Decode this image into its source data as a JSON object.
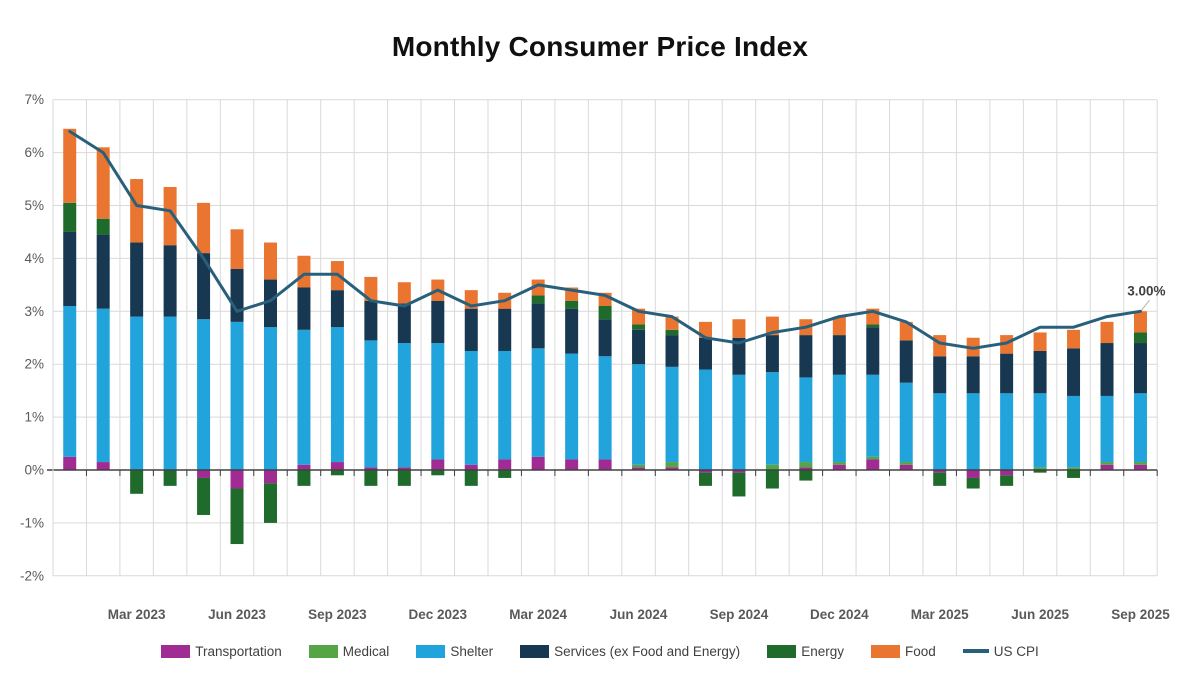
{
  "chart_data": {
    "type": "bar",
    "subtype": "stacked-bar-with-line",
    "title": "Monthly Consumer Price Index",
    "categories": [
      "Jan 2023",
      "Feb 2023",
      "Mar 2023",
      "Apr 2023",
      "May 2023",
      "Jun 2023",
      "Jul 2023",
      "Aug 2023",
      "Sep 2023",
      "Oct 2023",
      "Nov 2023",
      "Dec 2023",
      "Jan 2024",
      "Feb 2024",
      "Mar 2024",
      "Apr 2024",
      "May 2024",
      "Jun 2024",
      "Jul 2024",
      "Aug 2024",
      "Sep 2024",
      "Oct 2024",
      "Nov 2024",
      "Dec 2024",
      "Jan 2025",
      "Feb 2025",
      "Mar 2025",
      "Apr 2025",
      "May 2025",
      "Jun 2025",
      "Jul 2025",
      "Aug 2025",
      "Sep 2025"
    ],
    "x_tick_labels": [
      "Mar 2023",
      "Jun 2023",
      "Sep 2023",
      "Dec 2023",
      "Mar 2024",
      "Jun 2024",
      "Sep 2024",
      "Dec 2024",
      "Mar 2025",
      "Jun 2025",
      "Sep 2025"
    ],
    "x_tick_indices": [
      2,
      5,
      8,
      11,
      14,
      17,
      20,
      23,
      26,
      29,
      32
    ],
    "y_axis": {
      "min": -2,
      "max": 7,
      "step": 1,
      "suffix": "%"
    },
    "grid": true,
    "legend_position": "bottom",
    "series": [
      {
        "name": "Transportation",
        "type": "bar",
        "color": "#A02B93",
        "values": [
          0.25,
          0.15,
          0,
          0,
          -0.15,
          -0.35,
          -0.25,
          0.1,
          0.15,
          0.05,
          0.05,
          0.2,
          0.1,
          0.2,
          0.25,
          0.2,
          0.2,
          0.05,
          0.05,
          -0.05,
          -0.05,
          0,
          0.05,
          0.1,
          0.2,
          0.1,
          -0.05,
          -0.15,
          -0.1,
          0,
          0,
          0.1,
          0.1
        ]
      },
      {
        "name": "Medical",
        "type": "bar",
        "color": "#55A546",
        "values": [
          0,
          0,
          0,
          0,
          0,
          0,
          0,
          0,
          0,
          0,
          0,
          0,
          0,
          0,
          0,
          0,
          0,
          0.05,
          0.1,
          0,
          0,
          0.1,
          0.1,
          0.05,
          0.05,
          0.05,
          0,
          0,
          0,
          0.05,
          0.05,
          0.05,
          0.05
        ]
      },
      {
        "name": "Shelter",
        "type": "bar",
        "color": "#21A3DC",
        "values": [
          2.85,
          2.9,
          2.9,
          2.9,
          2.85,
          2.8,
          2.7,
          2.55,
          2.55,
          2.4,
          2.35,
          2.2,
          2.15,
          2.05,
          2.05,
          2.0,
          1.95,
          1.9,
          1.8,
          1.9,
          1.8,
          1.75,
          1.6,
          1.65,
          1.55,
          1.5,
          1.45,
          1.45,
          1.45,
          1.4,
          1.35,
          1.25,
          1.3
        ]
      },
      {
        "name": "Services (ex Food and Energy)",
        "type": "bar",
        "color": "#173850",
        "values": [
          1.4,
          1.4,
          1.4,
          1.35,
          1.25,
          1.0,
          0.9,
          0.8,
          0.7,
          0.75,
          0.75,
          0.8,
          0.8,
          0.8,
          0.85,
          0.85,
          0.7,
          0.65,
          0.6,
          0.6,
          0.7,
          0.7,
          0.8,
          0.75,
          0.9,
          0.8,
          0.7,
          0.7,
          0.75,
          0.8,
          0.9,
          1.0,
          0.95
        ]
      },
      {
        "name": "Energy",
        "type": "bar",
        "color": "#1F6B2C",
        "values": [
          0.55,
          0.3,
          -0.45,
          -0.3,
          -0.7,
          -1.05,
          -0.75,
          -0.3,
          -0.1,
          -0.3,
          -0.3,
          -0.1,
          -0.3,
          -0.15,
          0.15,
          0.15,
          0.25,
          0.1,
          0.1,
          -0.25,
          -0.45,
          -0.35,
          -0.2,
          0,
          0.05,
          0,
          -0.25,
          -0.2,
          -0.2,
          -0.05,
          -0.15,
          0,
          0.2
        ]
      },
      {
        "name": "Food",
        "type": "bar",
        "color": "#E97530",
        "values": [
          1.4,
          1.35,
          1.2,
          1.1,
          0.95,
          0.75,
          0.7,
          0.6,
          0.55,
          0.45,
          0.4,
          0.4,
          0.35,
          0.3,
          0.3,
          0.25,
          0.25,
          0.3,
          0.25,
          0.3,
          0.35,
          0.35,
          0.3,
          0.35,
          0.3,
          0.35,
          0.4,
          0.35,
          0.35,
          0.35,
          0.35,
          0.4,
          0.4
        ]
      },
      {
        "name": "US CPI",
        "type": "line",
        "color": "#28607C",
        "values": [
          6.4,
          6.0,
          5.0,
          4.9,
          4.0,
          3.0,
          3.2,
          3.7,
          3.7,
          3.2,
          3.1,
          3.4,
          3.1,
          3.2,
          3.5,
          3.4,
          3.3,
          3.0,
          2.9,
          2.5,
          2.4,
          2.6,
          2.7,
          2.9,
          3.0,
          2.8,
          2.4,
          2.3,
          2.4,
          2.7,
          2.7,
          2.9,
          3.0
        ]
      }
    ],
    "annotation": {
      "text": "3.00%",
      "series": "US CPI",
      "target_index": 32
    }
  },
  "style_colors": {
    "gridline": "#D9D9D9",
    "zero_axis": "#404040",
    "axis_tick": "#404040",
    "y_label": "#595959",
    "x_label": "#595959",
    "annotation_text": "#404040",
    "annotation_leader": "#BFBFBF",
    "title_text": "#101010",
    "legend_text": "#404040",
    "background": "#FFFFFF"
  }
}
